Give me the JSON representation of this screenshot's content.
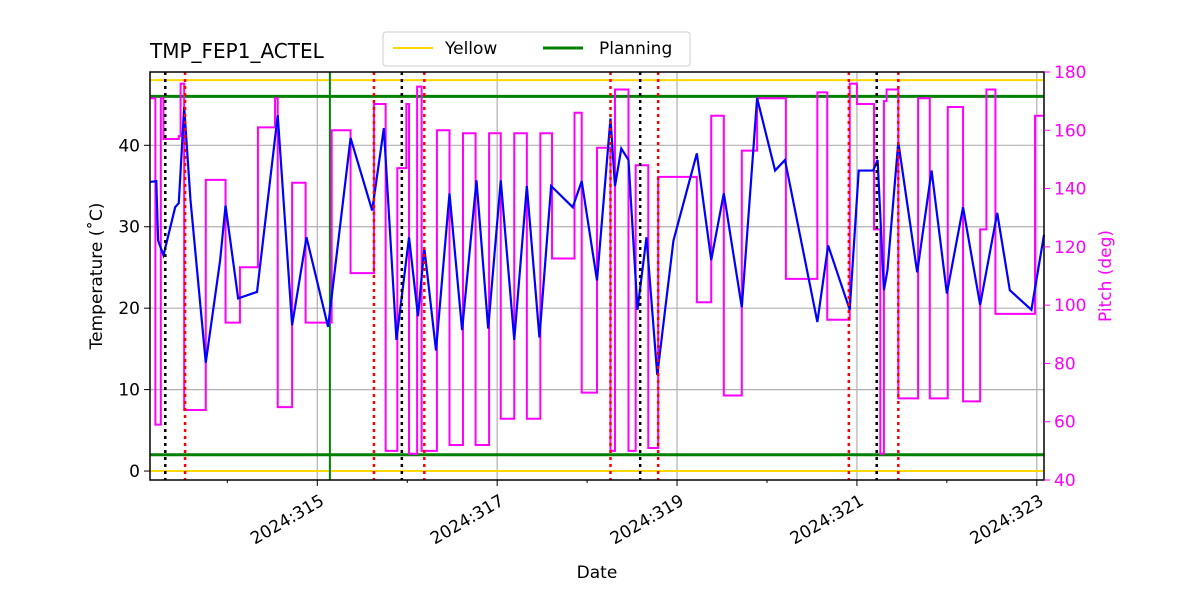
{
  "chart_data": {
    "type": "line",
    "title": "TMP_FEP1_ACTEL",
    "xlabel": "Date",
    "ylabel": "Temperature ($^\\circ$C)",
    "ylabel_display": "Temperature (˚C)",
    "y2label": "Pitch (deg)",
    "xlim": [
      313.14,
      323.08
    ],
    "ylim": [
      -1.1,
      49.0
    ],
    "y2lim": [
      40,
      180
    ],
    "x_ticks": [
      315,
      317,
      319,
      321,
      323
    ],
    "x_tick_labels": [
      "2024:315",
      "2024:317",
      "2024:319",
      "2024:321",
      "2024:323"
    ],
    "x_minor_ticks": [
      314,
      316,
      318,
      320,
      322
    ],
    "y_ticks": [
      0,
      10,
      20,
      30,
      40
    ],
    "y2_ticks": [
      40,
      60,
      80,
      100,
      120,
      140,
      160,
      180
    ],
    "grid": true,
    "legend": {
      "placement": "top-center",
      "entries": [
        {
          "label": "Yellow",
          "color": "#ffd700"
        },
        {
          "label": "Planning",
          "color": "#008000"
        }
      ]
    },
    "colors": {
      "temperature": "#0000ff",
      "pitch": "#ff00ff",
      "yellow": "#ffd700",
      "planning": "#008000",
      "red_marker": "#ff0000",
      "black_marker": "#000000",
      "grid": "#b0b0b0"
    },
    "limits": {
      "yellow": [
        0,
        48
      ],
      "planning": [
        2,
        46
      ]
    },
    "planning_vertical": 315.14,
    "black_dotted_lines": [
      313.31,
      315.94,
      318.59,
      321.22
    ],
    "red_dotted_lines": [
      313.53,
      315.63,
      316.19,
      318.26,
      318.79,
      320.91,
      321.46
    ],
    "series": [
      {
        "axis": "left",
        "x": [
          313.14,
          313.21,
          313.23,
          313.29,
          313.42,
          313.46,
          313.52,
          313.59,
          313.76,
          313.92,
          313.98,
          314.12,
          314.33,
          314.56,
          314.72,
          314.88,
          315.12,
          315.37,
          315.61,
          315.74,
          315.88,
          316.02,
          316.12,
          316.19,
          316.32,
          316.47,
          316.61,
          316.77,
          316.9,
          317.04,
          317.19,
          317.33,
          317.47,
          317.6,
          317.84,
          317.94,
          318.11,
          318.26,
          318.31,
          318.38,
          318.46,
          318.56,
          318.66,
          318.78,
          318.96,
          319.22,
          319.38,
          319.52,
          319.72,
          319.89,
          320.09,
          320.2,
          320.56,
          320.68,
          320.92,
          321.02,
          321.18,
          321.23,
          321.3,
          321.34,
          321.46,
          321.67,
          321.83,
          322.0,
          322.18,
          322.37,
          322.56,
          322.7,
          322.94,
          323.08
        ],
        "y": [
          35.5,
          35.6,
          28.3,
          26.5,
          32.4,
          32.9,
          44.7,
          33.3,
          13.3,
          25.9,
          32.6,
          21.2,
          22.0,
          43.7,
          17.9,
          28.7,
          17.7,
          40.9,
          32.0,
          42.1,
          16.1,
          28.7,
          19.0,
          27.4,
          14.8,
          34.1,
          17.3,
          35.7,
          17.5,
          35.7,
          16.1,
          35.0,
          16.4,
          35.0,
          32.4,
          35.6,
          23.4,
          43.3,
          35.0,
          39.6,
          38.2,
          19.8,
          28.7,
          11.8,
          28.3,
          39.0,
          25.9,
          34.1,
          20.1,
          45.8,
          36.9,
          38.2,
          18.3,
          27.7,
          19.8,
          36.9,
          36.9,
          38.2,
          22.2,
          24.7,
          40.4,
          24.4,
          36.9,
          21.8,
          32.4,
          20.4,
          31.7,
          22.2,
          19.8,
          29.0
        ]
      },
      {
        "axis": "right",
        "drawstyle": "steps-post",
        "x": [
          313.14,
          313.2,
          313.26,
          313.29,
          313.46,
          313.48,
          313.52,
          313.76,
          313.98,
          314.14,
          314.34,
          314.53,
          314.56,
          314.72,
          314.87,
          315.16,
          315.37,
          315.63,
          315.76,
          315.89,
          315.99,
          316.02,
          316.11,
          316.16,
          316.33,
          316.47,
          316.62,
          316.76,
          316.91,
          317.04,
          317.19,
          317.33,
          317.48,
          317.61,
          317.86,
          317.94,
          318.11,
          318.26,
          318.31,
          318.46,
          318.54,
          318.68,
          318.79,
          319.22,
          319.38,
          319.52,
          319.72,
          319.89,
          320.21,
          320.56,
          320.67,
          320.92,
          321.0,
          321.19,
          321.26,
          321.3,
          321.33,
          321.46,
          321.68,
          321.81,
          322.01,
          322.18,
          322.37,
          322.44,
          322.54,
          322.98,
          323.08
        ],
        "y": [
          171,
          59,
          171,
          157,
          158,
          176,
          64,
          143,
          94,
          113,
          161,
          171,
          65,
          142,
          94,
          160,
          111,
          169,
          50,
          147,
          169,
          49,
          175,
          50,
          160,
          52,
          159,
          52,
          159,
          61,
          159,
          61,
          159,
          116,
          166,
          70,
          154,
          50,
          174,
          50,
          148,
          51,
          144,
          101,
          165,
          69,
          153,
          171,
          109,
          173,
          95,
          176,
          169,
          126,
          49,
          170,
          174,
          68,
          171,
          68,
          168,
          67,
          126,
          174,
          97,
          165,
          165
        ]
      }
    ]
  }
}
